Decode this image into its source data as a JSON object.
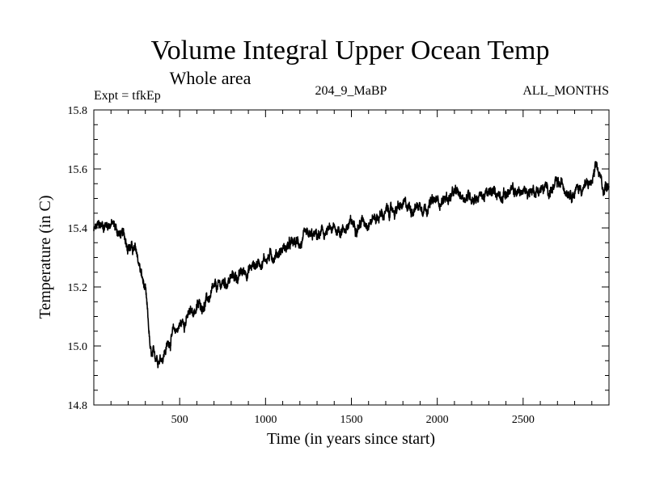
{
  "chart_data": {
    "type": "line",
    "title": "Volume Integral Upper Ocean Temp",
    "subtitle": "Whole area",
    "expt_label": "Expt = tfkEp",
    "run_label": "204_9_MaBP",
    "months_label": "ALL_MONTHS",
    "xlabel": "Time (in years since start)",
    "ylabel": "Temperature (in C)",
    "xlim": [
      0,
      3000
    ],
    "ylim": [
      14.8,
      15.8
    ],
    "x_ticks": [
      500,
      1000,
      1500,
      2000,
      2500
    ],
    "y_ticks": [
      14.8,
      15.0,
      15.2,
      15.4,
      15.6,
      15.8
    ],
    "grid": false,
    "series": [
      {
        "color": "#000000",
        "x": [
          0,
          50,
          100,
          150,
          200,
          250,
          300,
          320,
          330,
          340,
          350,
          400,
          450,
          500,
          550,
          600,
          650,
          700,
          750,
          800,
          850,
          900,
          950,
          1000,
          1050,
          1100,
          1150,
          1200,
          1250,
          1300,
          1350,
          1400,
          1450,
          1500,
          1550,
          1600,
          1650,
          1700,
          1750,
          1800,
          1850,
          1900,
          1950,
          2000,
          2050,
          2100,
          2150,
          2200,
          2250,
          2300,
          2350,
          2400,
          2450,
          2500,
          2550,
          2600,
          2650,
          2700,
          2750,
          2800,
          2850,
          2900,
          2930,
          2950,
          2970,
          3000
        ],
        "y": [
          15.39,
          15.41,
          15.42,
          15.38,
          15.35,
          15.31,
          15.18,
          15.05,
          14.97,
          14.95,
          14.96,
          14.97,
          15.03,
          15.07,
          15.1,
          15.13,
          15.15,
          15.18,
          15.21,
          15.23,
          15.24,
          15.26,
          15.28,
          15.3,
          15.31,
          15.33,
          15.34,
          15.35,
          15.36,
          15.37,
          15.38,
          15.39,
          15.4,
          15.41,
          15.42,
          15.43,
          15.44,
          15.45,
          15.46,
          15.47,
          15.47,
          15.48,
          15.48,
          15.49,
          15.5,
          15.51,
          15.51,
          15.51,
          15.51,
          15.51,
          15.52,
          15.52,
          15.52,
          15.52,
          15.53,
          15.53,
          15.53,
          15.54,
          15.54,
          15.53,
          15.54,
          15.55,
          15.6,
          15.56,
          15.53,
          15.56
        ]
      }
    ]
  }
}
